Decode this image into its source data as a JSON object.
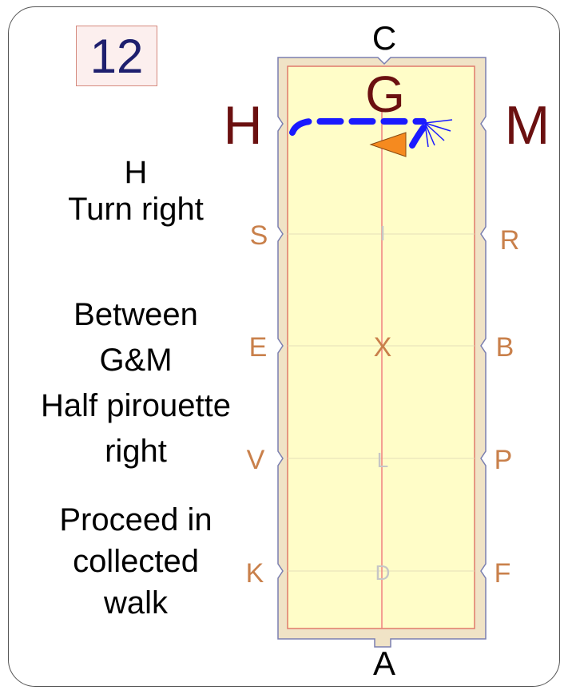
{
  "test_number": "12",
  "arena": {
    "top_letter": "C",
    "bottom_letter": "A",
    "outer_letters": {
      "H": "H",
      "G": "G",
      "M": "M"
    },
    "left_letters": [
      "S",
      "E",
      "V",
      "K"
    ],
    "right_letters": [
      "R",
      "B",
      "P",
      "F"
    ],
    "centerline_letters": [
      "I",
      "X",
      "L",
      "D"
    ],
    "colors": {
      "arena_fill": "#fffdc8",
      "arena_border": "#f0e3c6",
      "center_line": "#f08080",
      "path": "#1a1aff",
      "horse": "#f58a1f",
      "marker_letter": "#c9804b"
    }
  },
  "instructions": {
    "step1_letter": "H",
    "step1_action": "Turn right",
    "step2_line1": "Between",
    "step2_line2": "G&M",
    "step2_line3": "Half pirouette",
    "step2_line4": "right",
    "step3_line1": "Proceed in",
    "step3_line2": "collected",
    "step3_line3": "walk"
  }
}
